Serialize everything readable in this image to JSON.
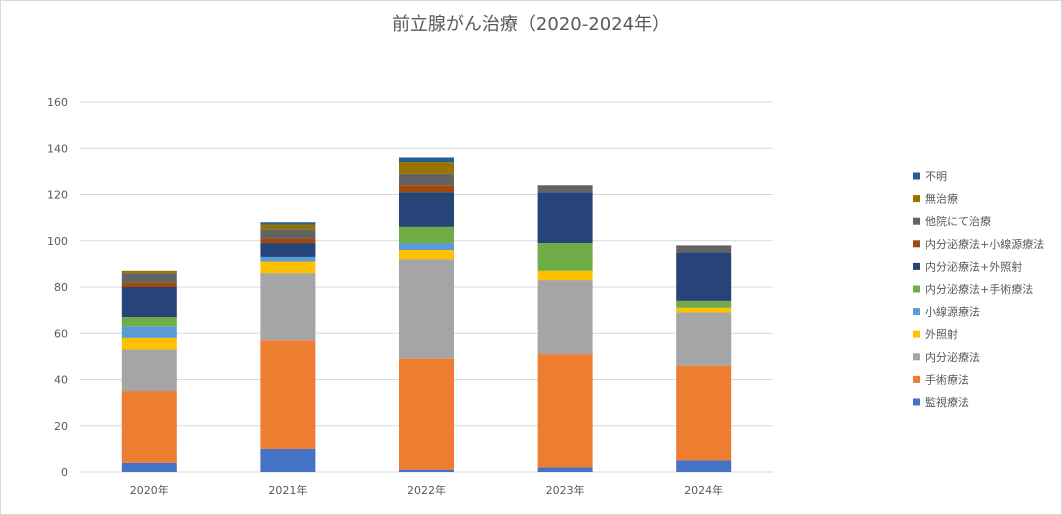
{
  "chart_data": {
    "type": "bar",
    "stacked": true,
    "title": "前立腺がん治療（2020-2024年）",
    "categories": [
      "2020年",
      "2021年",
      "2022年",
      "2023年",
      "2024年"
    ],
    "ylim": [
      0,
      160
    ],
    "yticks": [
      0,
      20,
      40,
      60,
      80,
      100,
      120,
      140,
      160
    ],
    "grid": true,
    "legend_position": "right",
    "series": [
      {
        "name": "監視療法",
        "color": "#4472c4",
        "values": [
          4,
          10,
          1,
          2,
          5
        ]
      },
      {
        "name": "手術療法",
        "color": "#ed7d31",
        "values": [
          31,
          47,
          48,
          49,
          41
        ]
      },
      {
        "name": "内分泌療法",
        "color": "#a5a5a5",
        "values": [
          18,
          29,
          43,
          32,
          23
        ]
      },
      {
        "name": "外照射",
        "color": "#ffc000",
        "values": [
          5,
          5,
          4,
          4,
          2
        ]
      },
      {
        "name": "小線源療法",
        "color": "#5b9bd5",
        "values": [
          5,
          2,
          3,
          0,
          0
        ]
      },
      {
        "name": "内分泌療法+手術療法",
        "color": "#70ad47",
        "values": [
          4,
          0,
          7,
          12,
          3
        ]
      },
      {
        "name": "内分泌療法+外照射",
        "color": "#264478",
        "values": [
          13,
          6,
          15,
          22,
          21
        ]
      },
      {
        "name": "内分泌療法+小線源療法",
        "color": "#9e480e",
        "values": [
          2,
          2,
          3,
          0,
          0
        ]
      },
      {
        "name": "他院にて治療",
        "color": "#636363",
        "values": [
          4,
          4,
          5,
          3,
          3
        ]
      },
      {
        "name": "無治療",
        "color": "#997300",
        "values": [
          1,
          2,
          5,
          0,
          0
        ]
      },
      {
        "name": "不明",
        "color": "#255e91",
        "values": [
          0,
          1,
          2,
          0,
          0
        ]
      }
    ]
  }
}
